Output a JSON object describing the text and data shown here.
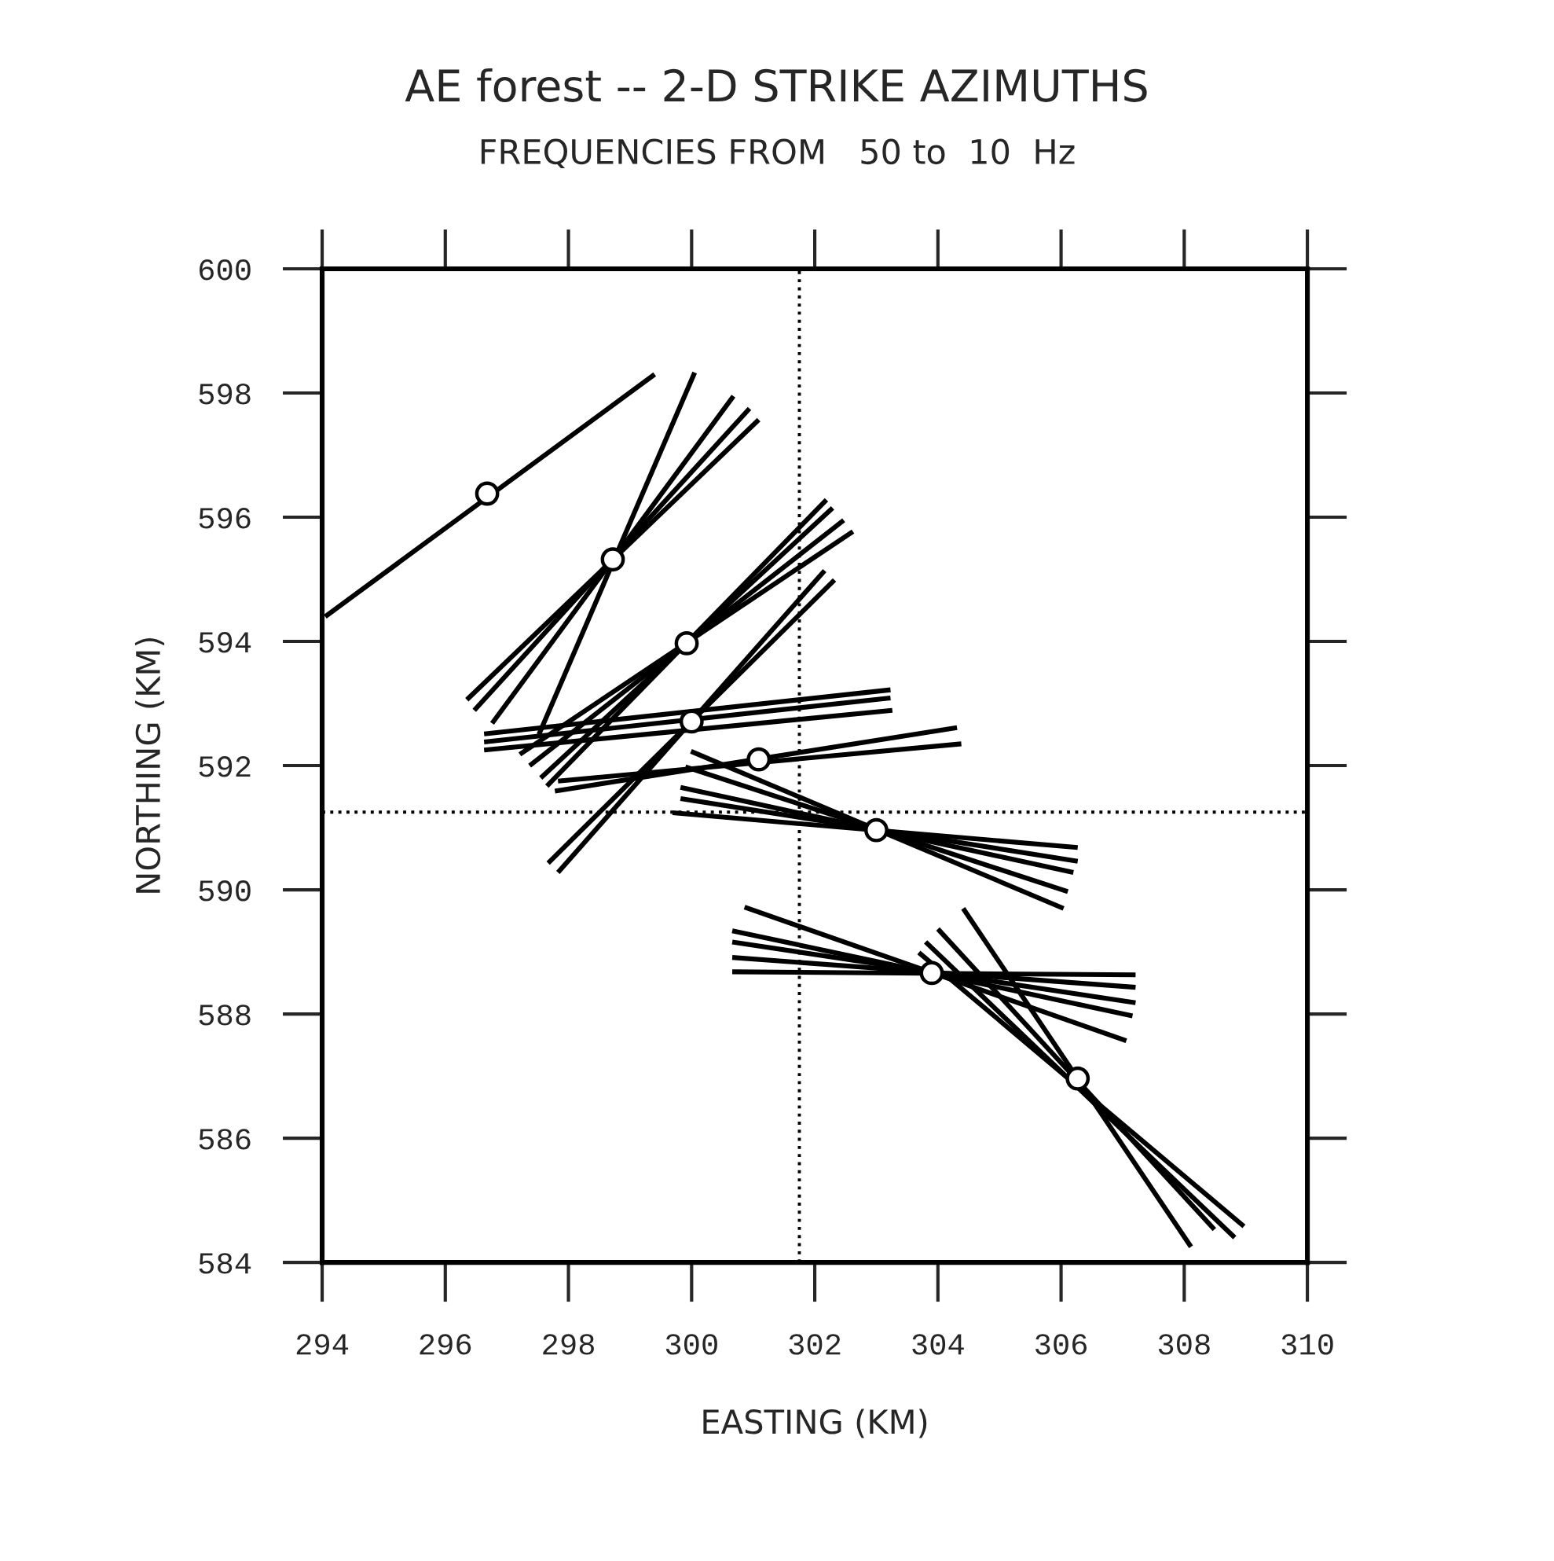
{
  "chart_data": {
    "type": "line",
    "title": "AE forest -- 2-D STRIKE AZIMUTHS",
    "subtitle": "FREQUENCIES FROM   50 to  10  Hz",
    "xlabel": "EASTING (KM)",
    "ylabel": "NORTHING (KM)",
    "xlim": [
      294,
      310
    ],
    "xticks": [
      294,
      296,
      298,
      300,
      302,
      304,
      306,
      308,
      310
    ],
    "ylim": [
      584,
      600
    ],
    "yticks": [
      584,
      586,
      588,
      590,
      592,
      594,
      596,
      598,
      600
    ],
    "grid": false,
    "legend": false,
    "line_style": "solid",
    "ref_lines": [
      {
        "axis": "x",
        "value": 301.75,
        "label": null,
        "color": "#000000",
        "line_style": "dotted"
      },
      {
        "axis": "y",
        "value": 591.25,
        "label": null,
        "color": "#000000",
        "line_style": "dotted"
      }
    ],
    "series": [
      {
        "color": "#000000",
        "x": [
          294.05,
          299.4
        ],
        "values": [
          594.4,
          598.3
        ]
      },
      {
        "color": "#000000",
        "x": [
          297.52,
          300.05
        ],
        "values": [
          592.5,
          598.33
        ]
      },
      {
        "color": "#000000",
        "x": [
          296.76,
          300.68
        ],
        "values": [
          592.68,
          597.95
        ]
      },
      {
        "color": "#000000",
        "x": [
          296.47,
          300.94
        ],
        "values": [
          592.89,
          597.75
        ]
      },
      {
        "color": "#000000",
        "x": [
          296.35,
          301.09
        ],
        "values": [
          593.06,
          597.57
        ]
      },
      {
        "color": "#000000",
        "x": [
          297.65,
          302.19
        ],
        "values": [
          591.67,
          596.28
        ]
      },
      {
        "color": "#000000",
        "x": [
          297.55,
          302.29
        ],
        "values": [
          591.8,
          596.15
        ]
      },
      {
        "color": "#000000",
        "x": [
          297.37,
          302.47
        ],
        "values": [
          592.0,
          595.95
        ]
      },
      {
        "color": "#000000",
        "x": [
          297.21,
          302.62
        ],
        "values": [
          592.18,
          595.77
        ]
      },
      {
        "color": "#000000",
        "x": [
          297.83,
          302.16
        ],
        "values": [
          590.28,
          595.14
        ]
      },
      {
        "color": "#000000",
        "x": [
          297.67,
          302.32
        ],
        "values": [
          590.43,
          594.99
        ]
      },
      {
        "color": "#000000",
        "x": [
          296.63,
          303.23
        ],
        "values": [
          592.51,
          593.22
        ]
      },
      {
        "color": "#000000",
        "x": [
          296.63,
          303.23
        ],
        "values": [
          592.38,
          593.09
        ]
      },
      {
        "color": "#000000",
        "x": [
          296.63,
          303.26
        ],
        "values": [
          592.25,
          592.89
        ]
      },
      {
        "color": "#000000",
        "x": [
          297.78,
          304.31
        ],
        "values": [
          591.59,
          592.61
        ]
      },
      {
        "color": "#000000",
        "x": [
          297.83,
          304.38
        ],
        "values": [
          591.75,
          592.35
        ]
      },
      {
        "color": "#000000",
        "x": [
          299.99,
          306.04
        ],
        "values": [
          592.23,
          589.7
        ]
      },
      {
        "color": "#000000",
        "x": [
          299.82,
          306.2
        ],
        "values": [
          591.65,
          590.28
        ]
      },
      {
        "color": "#000000",
        "x": [
          299.82,
          306.27
        ],
        "values": [
          591.47,
          590.46
        ]
      },
      {
        "color": "#000000",
        "x": [
          299.69,
          306.27
        ],
        "values": [
          591.24,
          590.68
        ]
      },
      {
        "color": "#000000",
        "x": [
          299.9,
          306.11
        ],
        "values": [
          591.98,
          589.97
        ]
      },
      {
        "color": "#000000",
        "x": [
          300.66,
          307.21
        ],
        "values": [
          588.68,
          588.63
        ]
      },
      {
        "color": "#000000",
        "x": [
          300.66,
          307.21
        ],
        "values": [
          588.91,
          588.43
        ]
      },
      {
        "color": "#000000",
        "x": [
          300.66,
          307.21
        ],
        "values": [
          589.16,
          588.18
        ]
      },
      {
        "color": "#000000",
        "x": [
          300.66,
          307.16
        ],
        "values": [
          589.34,
          587.97
        ]
      },
      {
        "color": "#000000",
        "x": [
          300.86,
          307.06
        ],
        "values": [
          589.72,
          587.57
        ]
      },
      {
        "color": "#000000",
        "x": [
          304.41,
          308.11
        ],
        "values": [
          589.7,
          584.25
        ]
      },
      {
        "color": "#000000",
        "x": [
          304.0,
          308.49
        ],
        "values": [
          589.37,
          584.53
        ]
      },
      {
        "color": "#000000",
        "x": [
          303.8,
          308.82
        ],
        "values": [
          589.16,
          584.4
        ]
      },
      {
        "color": "#000000",
        "x": [
          303.69,
          308.97
        ],
        "values": [
          588.99,
          584.58
        ]
      },
      {
        "type": "scatter",
        "marker": "circle",
        "color": "#000000",
        "x": [
          296.68,
          298.72,
          299.92,
          300.0,
          301.09,
          303.0,
          303.9,
          306.27
        ],
        "values": [
          596.38,
          595.32,
          593.97,
          592.71,
          592.1,
          590.96,
          588.66,
          586.96
        ]
      }
    ]
  }
}
